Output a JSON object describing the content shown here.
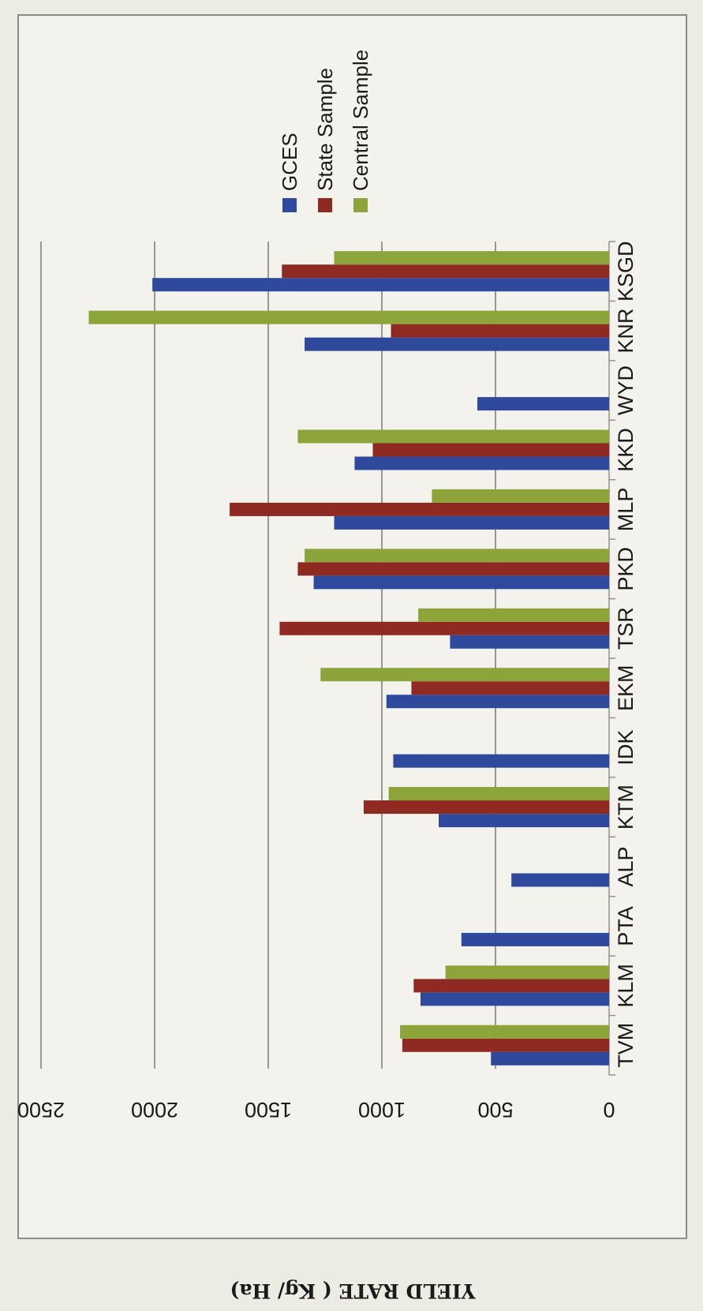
{
  "chart_data": {
    "type": "bar",
    "orientation": "vertical, page rotated 90 degrees",
    "xlabel": "",
    "ylabel": "YIELD RATE ( Kg/ Ha)",
    "categories": [
      "TVM",
      "KLM",
      "PTA",
      "ALP",
      "KTM",
      "IDK",
      "EKM",
      "TSR",
      "PKD",
      "MLP",
      "KKD",
      "WYD",
      "KNR",
      "KSGD"
    ],
    "series": [
      {
        "name": "GCES",
        "color": "#2f4a9c",
        "values": [
          520,
          830,
          650,
          430,
          750,
          950,
          980,
          700,
          1300,
          1210,
          1120,
          580,
          1340,
          2010
        ]
      },
      {
        "name": "State Sample",
        "color": "#8f2a22",
        "values": [
          910,
          860,
          0,
          0,
          1080,
          0,
          870,
          1450,
          1370,
          1670,
          1040,
          0,
          960,
          1440
        ]
      },
      {
        "name": "Central Sample",
        "color": "#8da43a",
        "values": [
          920,
          720,
          0,
          0,
          970,
          0,
          1270,
          840,
          1340,
          780,
          1370,
          0,
          2290,
          1210
        ]
      }
    ],
    "ylim": [
      0,
      2500
    ],
    "yticks": [
      "0",
      "500",
      "1000",
      "1500",
      "2000",
      "2500"
    ],
    "grid": true,
    "legend_position": "right"
  }
}
